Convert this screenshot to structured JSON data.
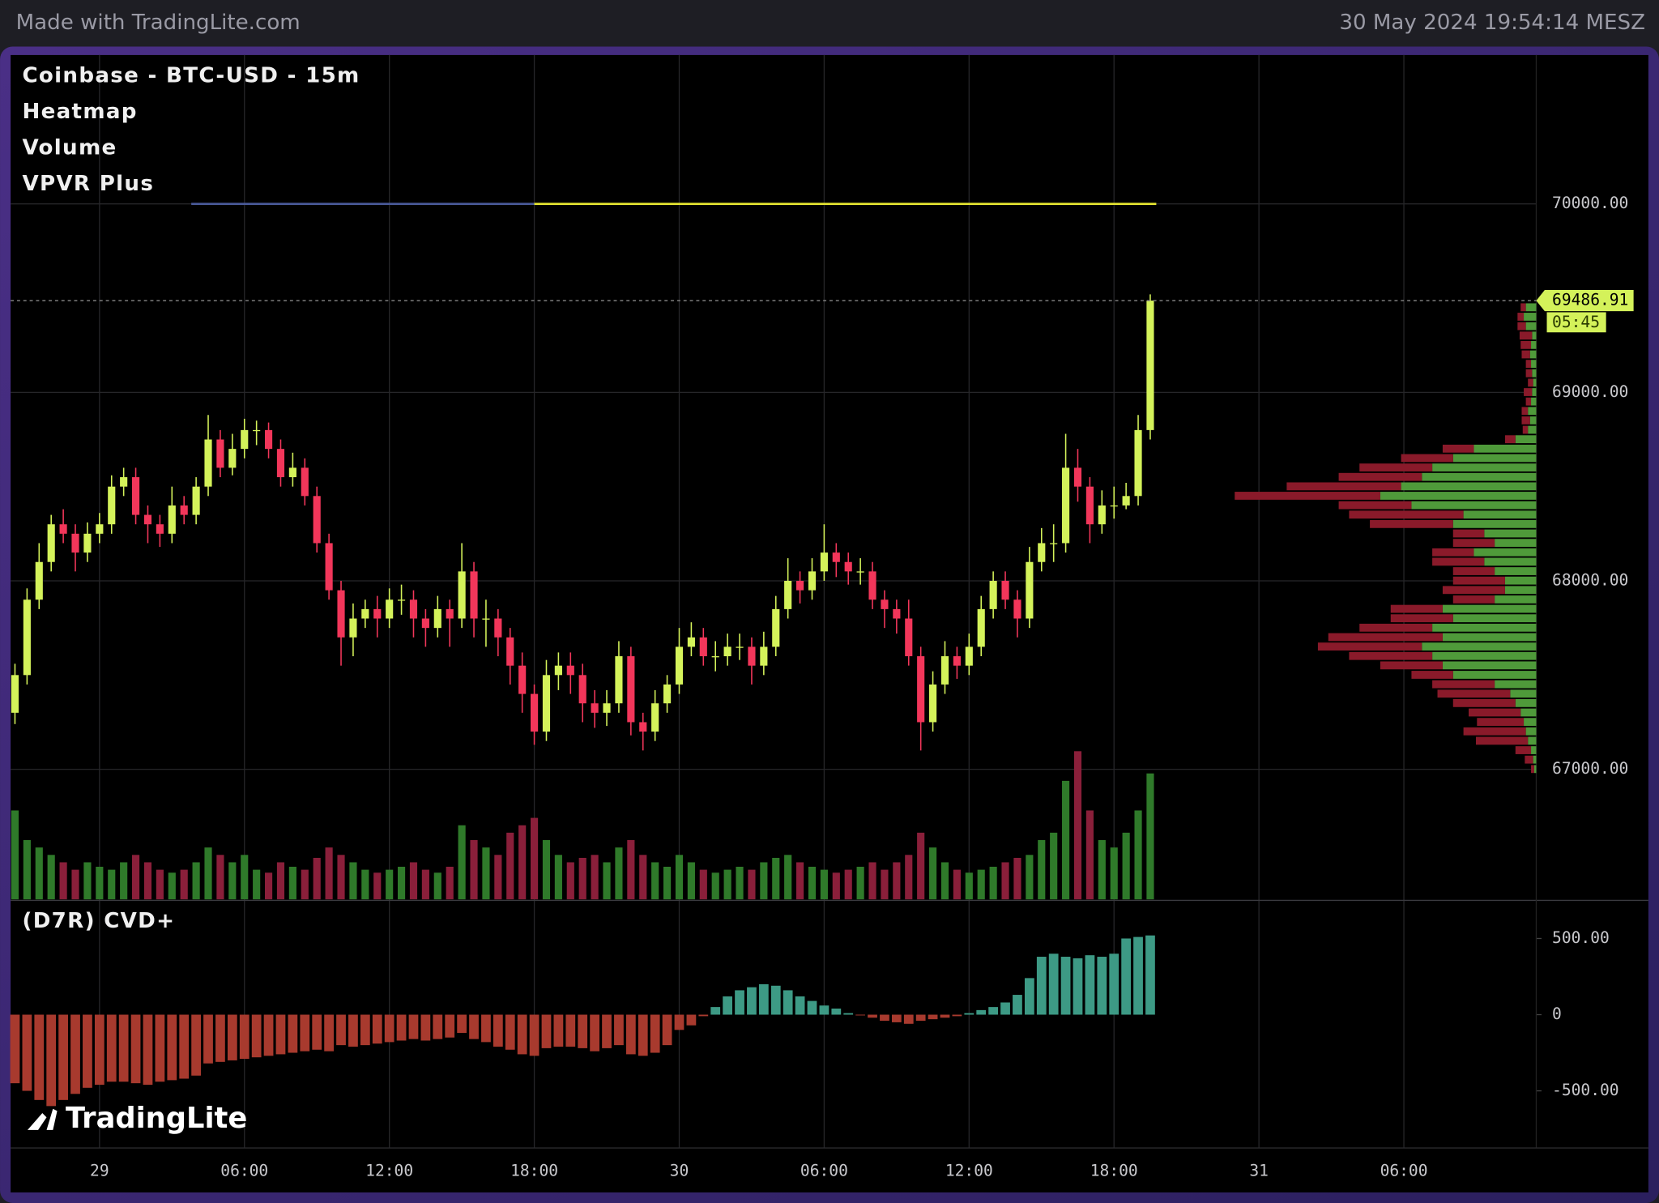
{
  "header": {
    "left": "Made with TradingLite.com",
    "right": "30 May 2024 19:54:14 MESZ"
  },
  "watermark": "TradingLite",
  "chart_data": [
    {
      "type": "candlestick",
      "title": "Coinbase - BTC-USD - 15m",
      "legend": [
        "Heatmap",
        "Volume",
        "VPVR Plus"
      ],
      "up_color": "#d4f25a",
      "down_color": "#f2365a",
      "volume_up_color": "#2f7a2a",
      "volume_down_color": "#8a1f3a",
      "xlim": [
        -3.68,
        59.48
      ],
      "xticks": [
        {
          "value": 0,
          "label": "29"
        },
        {
          "value": 6,
          "label": "06:00"
        },
        {
          "value": 12,
          "label": "12:00"
        },
        {
          "value": 18,
          "label": "18:00"
        },
        {
          "value": 24,
          "label": "30"
        },
        {
          "value": 30,
          "label": "06:00"
        },
        {
          "value": 36,
          "label": "12:00"
        },
        {
          "value": 42,
          "label": "18:00"
        },
        {
          "value": 48,
          "label": "31"
        },
        {
          "value": 54,
          "label": "06:00"
        }
      ],
      "ylim": [
        66310,
        70790
      ],
      "yticks": [
        {
          "value": 67000,
          "label": "67000.00"
        },
        {
          "value": 68000,
          "label": "68000.00"
        },
        {
          "value": 69000,
          "label": "69000.00"
        },
        {
          "value": 70000,
          "label": "70000.00"
        }
      ],
      "grid": true,
      "x": [
        -3.5,
        -3,
        -2.5,
        -2,
        -1.5,
        -1,
        -0.5,
        0,
        0.5,
        1,
        1.5,
        2,
        2.5,
        3,
        3.5,
        4,
        4.5,
        5,
        5.5,
        6,
        6.5,
        7,
        7.5,
        8,
        8.5,
        9,
        9.5,
        10,
        10.5,
        11,
        11.5,
        12,
        12.5,
        13,
        13.5,
        14,
        14.5,
        15,
        15.5,
        16,
        16.5,
        17,
        17.5,
        18,
        18.5,
        19,
        19.5,
        20,
        20.5,
        21,
        21.5,
        22,
        22.5,
        23,
        23.5,
        24,
        24.5,
        25,
        25.5,
        26,
        26.5,
        27,
        27.5,
        28,
        28.5,
        29,
        29.5,
        30,
        30.5,
        31,
        31.5,
        32,
        32.5,
        33,
        33.5,
        34,
        34.5,
        35,
        35.5,
        36,
        36.5,
        37,
        37.5,
        38,
        38.5,
        39,
        39.5,
        40,
        40.5,
        41,
        41.5,
        42,
        42.5,
        43,
        43.5
      ],
      "open": [
        67300,
        67500,
        67900,
        68100,
        68300,
        68250,
        68150,
        68250,
        68300,
        68500,
        68550,
        68350,
        68300,
        68250,
        68400,
        68350,
        68500,
        68750,
        68600,
        68700,
        68800,
        68800,
        68700,
        68550,
        68600,
        68450,
        68200,
        67950,
        67700,
        67800,
        67850,
        67800,
        67900,
        67900,
        67800,
        67750,
        67850,
        67800,
        68050,
        67800,
        67800,
        67700,
        67550,
        67400,
        67200,
        67500,
        67550,
        67500,
        67350,
        67300,
        67350,
        67600,
        67250,
        67200,
        67350,
        67450,
        67650,
        67700,
        67600,
        67600,
        67650,
        67650,
        67550,
        67650,
        67850,
        68000,
        67950,
        68050,
        68150,
        68100,
        68050,
        68050,
        67900,
        67850,
        67800,
        67600,
        67250,
        67450,
        67600,
        67550,
        67650,
        67850,
        68000,
        67900,
        67800,
        68100,
        68200,
        68200,
        68600,
        68500,
        68300,
        68400,
        68400,
        68450,
        68800
      ],
      "high": [
        67560,
        67960,
        68200,
        68350,
        68380,
        68300,
        68310,
        68360,
        68560,
        68600,
        68600,
        68400,
        68350,
        68500,
        68450,
        68550,
        68880,
        68800,
        68780,
        68860,
        68850,
        68840,
        68750,
        68680,
        68650,
        68500,
        68250,
        68000,
        67880,
        67900,
        67920,
        67960,
        67980,
        67950,
        67850,
        67920,
        67900,
        68200,
        68100,
        67900,
        67850,
        67750,
        67620,
        67450,
        67580,
        67620,
        67620,
        67560,
        67420,
        67420,
        67680,
        67650,
        67300,
        67420,
        67500,
        67750,
        67780,
        67750,
        67680,
        67720,
        67720,
        67700,
        67730,
        67920,
        68120,
        68050,
        68120,
        68300,
        68200,
        68150,
        68120,
        68100,
        67950,
        67900,
        67900,
        67650,
        67520,
        67680,
        67650,
        67720,
        67920,
        68050,
        68050,
        67950,
        68180,
        68280,
        68300,
        68780,
        68700,
        68550,
        68480,
        68500,
        68520,
        68880,
        69520
      ],
      "low": [
        67240,
        67450,
        67850,
        68050,
        68200,
        68050,
        68100,
        68200,
        68250,
        68450,
        68300,
        68200,
        68180,
        68200,
        68300,
        68300,
        68450,
        68550,
        68560,
        68650,
        68720,
        68650,
        68500,
        68500,
        68400,
        68150,
        67900,
        67550,
        67600,
        67750,
        67700,
        67750,
        67820,
        67700,
        67650,
        67700,
        67650,
        67750,
        67700,
        67650,
        67600,
        67450,
        67300,
        67130,
        67150,
        67420,
        67400,
        67250,
        67220,
        67230,
        67300,
        67180,
        67100,
        67150,
        67300,
        67400,
        67600,
        67550,
        67520,
        67550,
        67580,
        67450,
        67500,
        67600,
        67800,
        67880,
        67900,
        68000,
        68020,
        67980,
        67980,
        67850,
        67750,
        67720,
        67550,
        67100,
        67200,
        67400,
        67480,
        67500,
        67600,
        67800,
        67850,
        67700,
        67750,
        68050,
        68100,
        68150,
        68420,
        68200,
        68250,
        68330,
        68380,
        68400,
        68750
      ],
      "close": [
        67500,
        67900,
        68100,
        68300,
        68250,
        68150,
        68250,
        68300,
        68500,
        68550,
        68350,
        68300,
        68250,
        68400,
        68350,
        68500,
        68750,
        68600,
        68700,
        68800,
        68800,
        68700,
        68550,
        68600,
        68450,
        68200,
        67950,
        67700,
        67800,
        67850,
        67800,
        67900,
        67900,
        67800,
        67750,
        67850,
        67800,
        68050,
        67800,
        67800,
        67700,
        67550,
        67400,
        67200,
        67500,
        67550,
        67500,
        67350,
        67300,
        67350,
        67600,
        67250,
        67200,
        67350,
        67450,
        67650,
        67700,
        67600,
        67600,
        67650,
        67650,
        67550,
        67650,
        67850,
        68000,
        67950,
        68050,
        68150,
        68100,
        68050,
        68050,
        67900,
        67850,
        67800,
        67600,
        67250,
        67450,
        67600,
        67550,
        67650,
        67850,
        68000,
        67900,
        67800,
        68100,
        68200,
        68200,
        68600,
        68500,
        68300,
        68400,
        68400,
        68450,
        68800,
        69486.91
      ],
      "volume": [
        60,
        40,
        35,
        30,
        25,
        20,
        25,
        22,
        20,
        25,
        30,
        25,
        20,
        18,
        20,
        25,
        35,
        30,
        25,
        30,
        20,
        18,
        25,
        22,
        20,
        28,
        35,
        30,
        25,
        20,
        18,
        20,
        22,
        25,
        20,
        18,
        22,
        50,
        40,
        35,
        30,
        45,
        50,
        55,
        40,
        30,
        25,
        28,
        30,
        25,
        35,
        40,
        30,
        25,
        22,
        30,
        25,
        20,
        18,
        20,
        22,
        20,
        25,
        28,
        30,
        25,
        22,
        20,
        18,
        20,
        22,
        25,
        20,
        25,
        30,
        45,
        35,
        25,
        20,
        18,
        20,
        22,
        25,
        28,
        30,
        40,
        45,
        80,
        100,
        60,
        40,
        35,
        45,
        60,
        85
      ],
      "last_price": 69486.91,
      "countdown": "05:45",
      "walls": [
        {
          "price": 70000,
          "from": 3.8,
          "to": 18,
          "color": "#4a5a9a"
        },
        {
          "price": 70000,
          "from": 18,
          "to": 43.75,
          "color": "#e6e632"
        }
      ],
      "vpvr": {
        "buy_color": "#4f9a3a",
        "sell_color": "#8a1a2a",
        "prices": [
          67000,
          67050,
          67100,
          67150,
          67200,
          67250,
          67300,
          67350,
          67400,
          67450,
          67500,
          67550,
          67600,
          67650,
          67700,
          67750,
          67800,
          67850,
          67900,
          67950,
          68000,
          68050,
          68100,
          68150,
          68200,
          68250,
          68300,
          68350,
          68400,
          68450,
          68500,
          68550,
          68600,
          68650,
          68700,
          68750,
          68800,
          68850,
          68900,
          68950,
          69000,
          69050,
          69100,
          69150,
          69200,
          69250,
          69300,
          69350,
          69400,
          69450
        ],
        "buy": [
          2,
          3,
          5,
          8,
          10,
          12,
          15,
          20,
          25,
          40,
          80,
          90,
          100,
          110,
          90,
          100,
          80,
          90,
          40,
          30,
          30,
          40,
          50,
          60,
          40,
          50,
          80,
          70,
          120,
          150,
          130,
          110,
          100,
          80,
          60,
          20,
          8,
          6,
          8,
          5,
          4,
          3,
          4,
          5,
          6,
          5,
          4,
          10,
          12,
          10
        ],
        "sell": [
          3,
          8,
          15,
          50,
          60,
          45,
          50,
          60,
          70,
          60,
          40,
          60,
          80,
          100,
          110,
          70,
          60,
          50,
          40,
          60,
          50,
          40,
          50,
          40,
          40,
          30,
          80,
          110,
          70,
          140,
          110,
          80,
          70,
          50,
          30,
          10,
          5,
          8,
          6,
          5,
          8,
          5,
          6,
          5,
          8,
          10,
          12,
          8,
          6,
          5
        ]
      }
    },
    {
      "type": "bar",
      "title": "(D7R) CVD+",
      "pos_color": "#3d9a85",
      "neg_color": "#a83a2e",
      "ylim": [
        -875,
        743
      ],
      "yticks": [
        {
          "value": 500,
          "label": "500.00"
        },
        0,
        {
          "value": -500,
          "label": "-500.00"
        }
      ],
      "values": [
        -450,
        -500,
        -560,
        -600,
        -560,
        -520,
        -480,
        -460,
        -440,
        -440,
        -450,
        -460,
        -440,
        -430,
        -420,
        -400,
        -320,
        -310,
        -300,
        -290,
        -280,
        -270,
        -260,
        -250,
        -240,
        -230,
        -240,
        -200,
        -210,
        -200,
        -190,
        -180,
        -170,
        -160,
        -170,
        -160,
        -150,
        -120,
        -160,
        -180,
        -210,
        -230,
        -260,
        -270,
        -220,
        -210,
        -210,
        -220,
        -240,
        -220,
        -200,
        -260,
        -270,
        -250,
        -200,
        -100,
        -70,
        -10,
        50,
        120,
        160,
        180,
        200,
        190,
        160,
        120,
        90,
        60,
        40,
        10,
        -5,
        -20,
        -40,
        -50,
        -60,
        -40,
        -30,
        -20,
        -10,
        10,
        30,
        50,
        80,
        130,
        240,
        380,
        400,
        380,
        370,
        390,
        380,
        400,
        500,
        510,
        520
      ]
    }
  ]
}
